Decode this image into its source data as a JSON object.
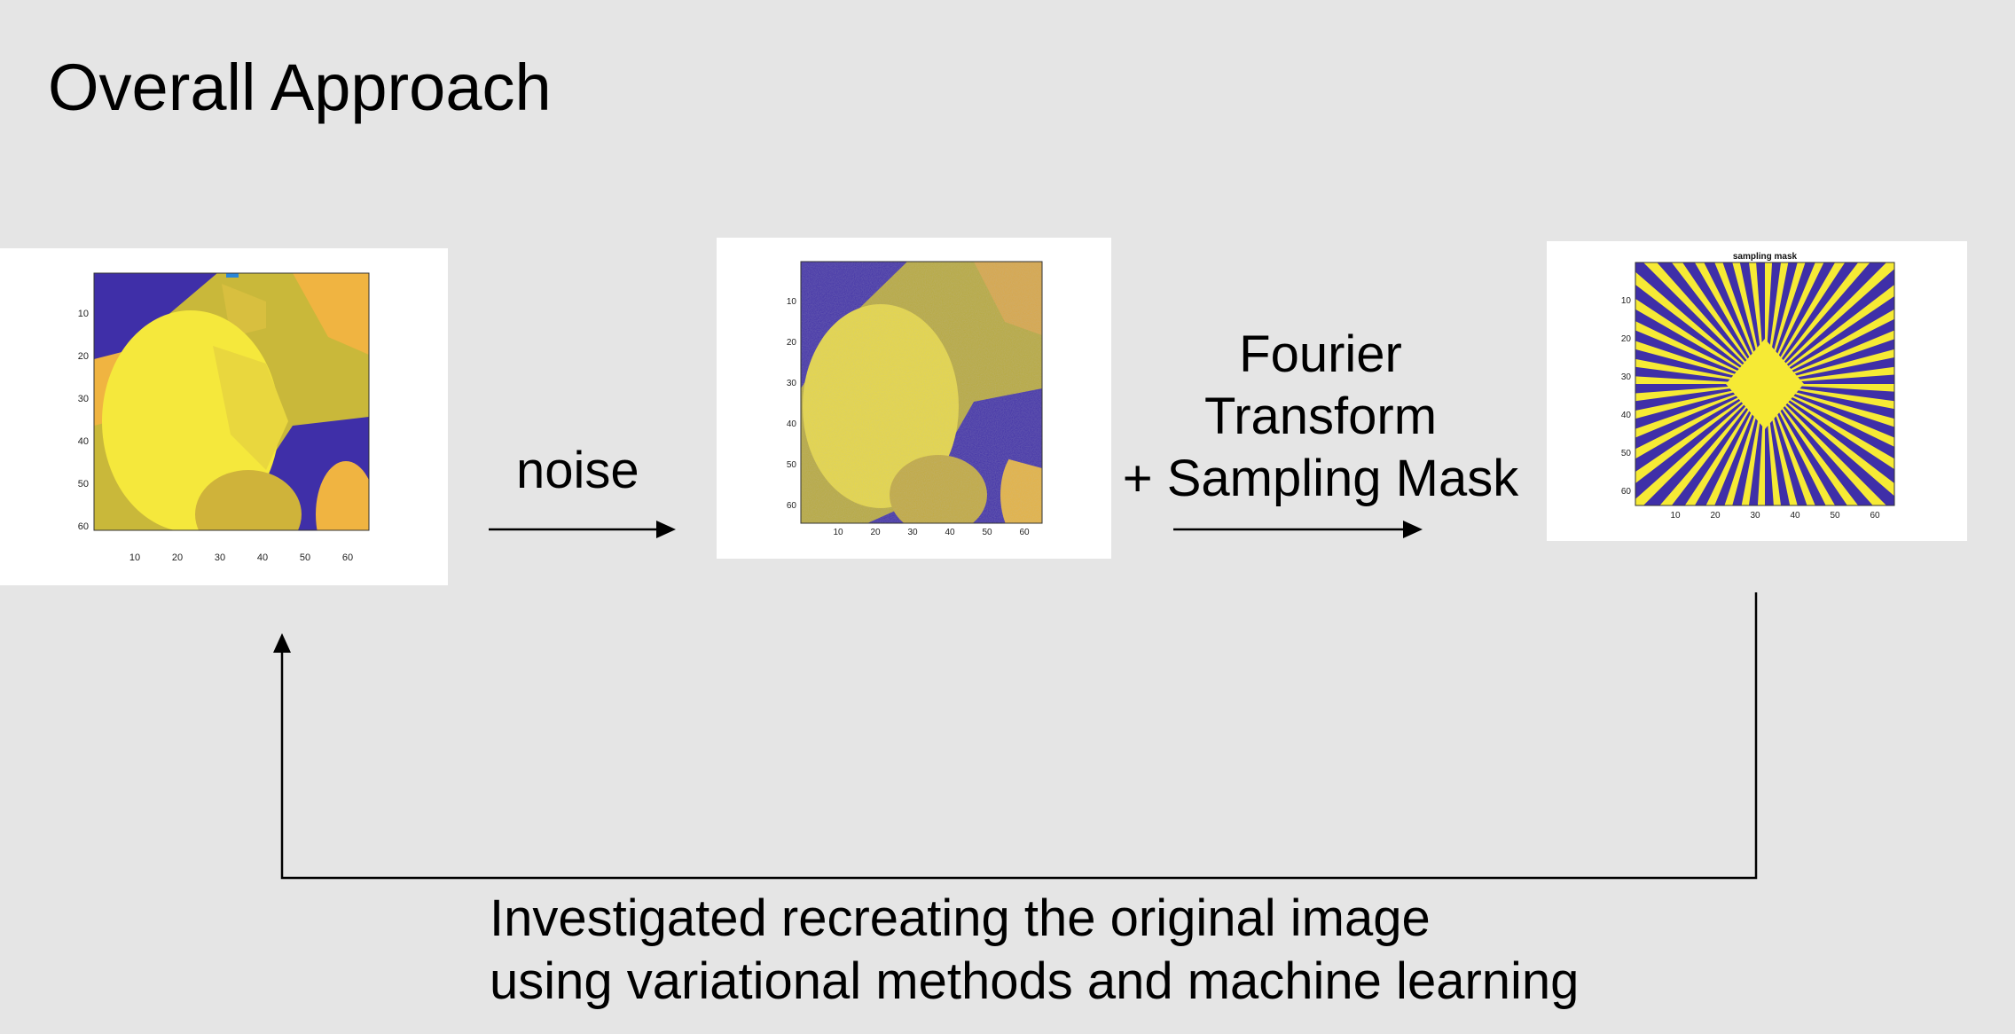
{
  "slide": {
    "title": "Overall Approach"
  },
  "panels": [
    {
      "ticks": [
        "10",
        "20",
        "30",
        "40",
        "50",
        "60"
      ],
      "title": ""
    },
    {
      "ticks": [
        "10",
        "20",
        "30",
        "40",
        "50",
        "60"
      ],
      "title": ""
    },
    {
      "ticks": [
        "10",
        "20",
        "30",
        "40",
        "50",
        "60"
      ],
      "title": "sampling mask"
    }
  ],
  "steps": {
    "noise": "noise",
    "fourier_lines": [
      "Fourier",
      "Transform",
      "+ Sampling Mask"
    ]
  },
  "footer": {
    "lines": [
      "Investigated recreating the original image",
      "using variational methods and machine learning"
    ]
  },
  "colors": {
    "background": "#e5e5e5",
    "mask_blue": "#3f2fa8",
    "mask_yellow": "#f6ea35",
    "grain_yellow": "#f5e83c",
    "grain_olive": "#c9b83a",
    "grain_orange": "#f0b441"
  }
}
